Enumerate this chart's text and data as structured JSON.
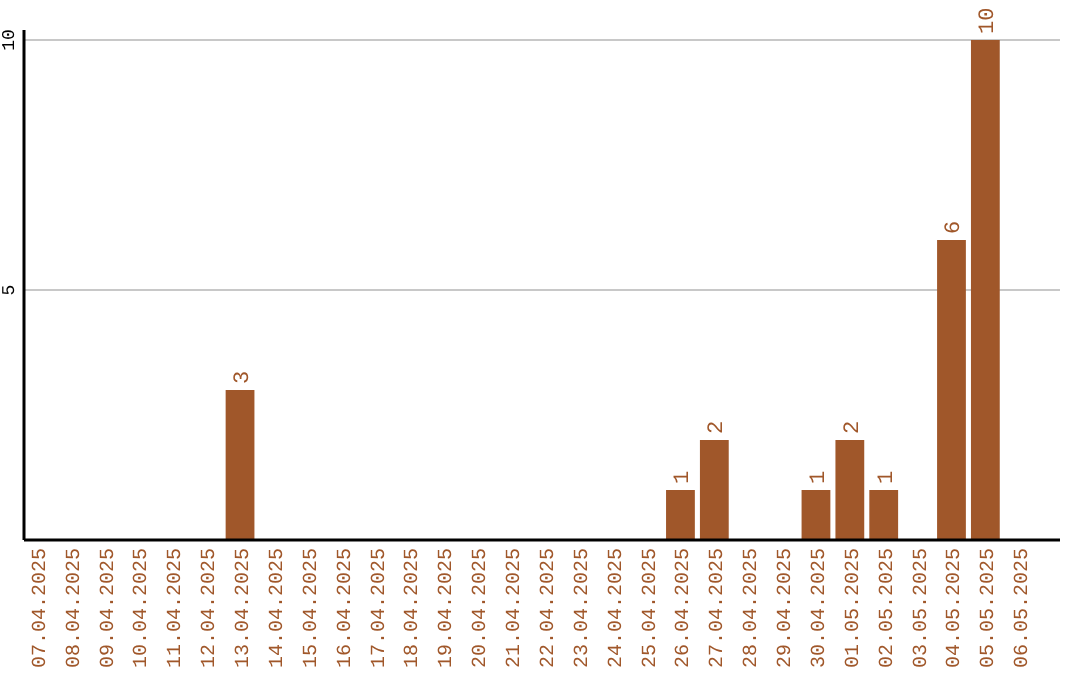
{
  "chart_data": {
    "type": "bar",
    "categories": [
      "07.04.2025",
      "08.04.2025",
      "09.04.2025",
      "10.04.2025",
      "11.04.2025",
      "12.04.2025",
      "13.04.2025",
      "14.04.2025",
      "15.04.2025",
      "16.04.2025",
      "17.04.2025",
      "18.04.2025",
      "19.04.2025",
      "20.04.2025",
      "21.04.2025",
      "22.04.2025",
      "23.04.2025",
      "24.04.2025",
      "25.04.2025",
      "26.04.2025",
      "27.04.2025",
      "28.04.2025",
      "29.04.2025",
      "30.04.2025",
      "01.05.2025",
      "02.05.2025",
      "03.05.2025",
      "04.05.2025",
      "05.05.2025",
      "06.05.2025"
    ],
    "values": [
      0,
      0,
      0,
      0,
      0,
      0,
      3,
      0,
      0,
      0,
      0,
      0,
      0,
      0,
      0,
      0,
      0,
      0,
      0,
      1,
      2,
      0,
      0,
      1,
      2,
      1,
      0,
      6,
      10,
      0
    ],
    "value_labels": [
      null,
      null,
      null,
      null,
      null,
      null,
      "3",
      null,
      null,
      null,
      null,
      null,
      null,
      null,
      null,
      null,
      null,
      null,
      null,
      "1",
      "2",
      null,
      null,
      "1",
      "2",
      "1",
      null,
      "6",
      "10",
      null
    ],
    "color": "#a0572a",
    "ylim": [
      0,
      10
    ],
    "yticks": [
      5,
      10
    ],
    "grid": "y"
  }
}
